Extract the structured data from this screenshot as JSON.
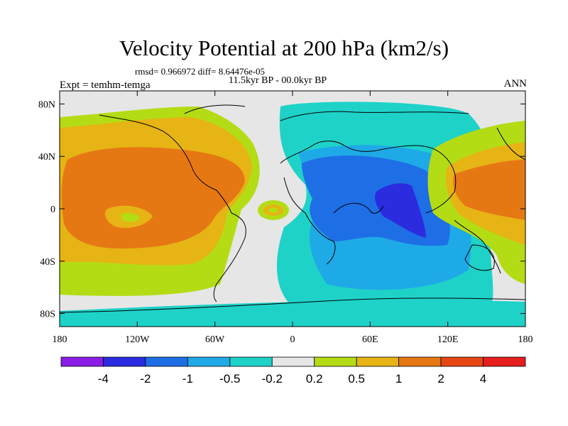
{
  "title": "Velocity Potential at 200 hPa (km2/s)",
  "stats": "rmsd= 0.966972 diff= 8.64476e-05",
  "period": "11.5kyr BP - 00.0kyr BP",
  "experiment": "Expt = temhm-temga",
  "season": "ANN",
  "lon_ticks": [
    "180",
    "120W",
    "60W",
    "0",
    "60E",
    "120E",
    "180"
  ],
  "lat_ticks": [
    "80N",
    "40N",
    "0",
    "40S",
    "80S"
  ],
  "colorbar": {
    "labels": [
      "-4",
      "-2",
      "-1",
      "-0.5",
      "-0.2",
      "0.2",
      "0.5",
      "1",
      "2",
      "4"
    ],
    "colors": [
      "#8a1ee6",
      "#2b2be0",
      "#1e6ee6",
      "#1eaae6",
      "#1ed2c8",
      "#e6e6e6",
      "#b4dc14",
      "#e6b414",
      "#e67814",
      "#e64614",
      "#e61e1e"
    ]
  },
  "field_colors": {
    "ocean_zero": "#e6e6e6",
    "neg_weak": "#1ed2c8",
    "neg_mid": "#1eaae6",
    "neg_strong": "#1e6ee6",
    "neg_max": "#2b2be0",
    "pos_weak": "#b4dc14",
    "pos_mid": "#e6b414",
    "pos_strong": "#e67814",
    "pos_max": "#e64614"
  }
}
